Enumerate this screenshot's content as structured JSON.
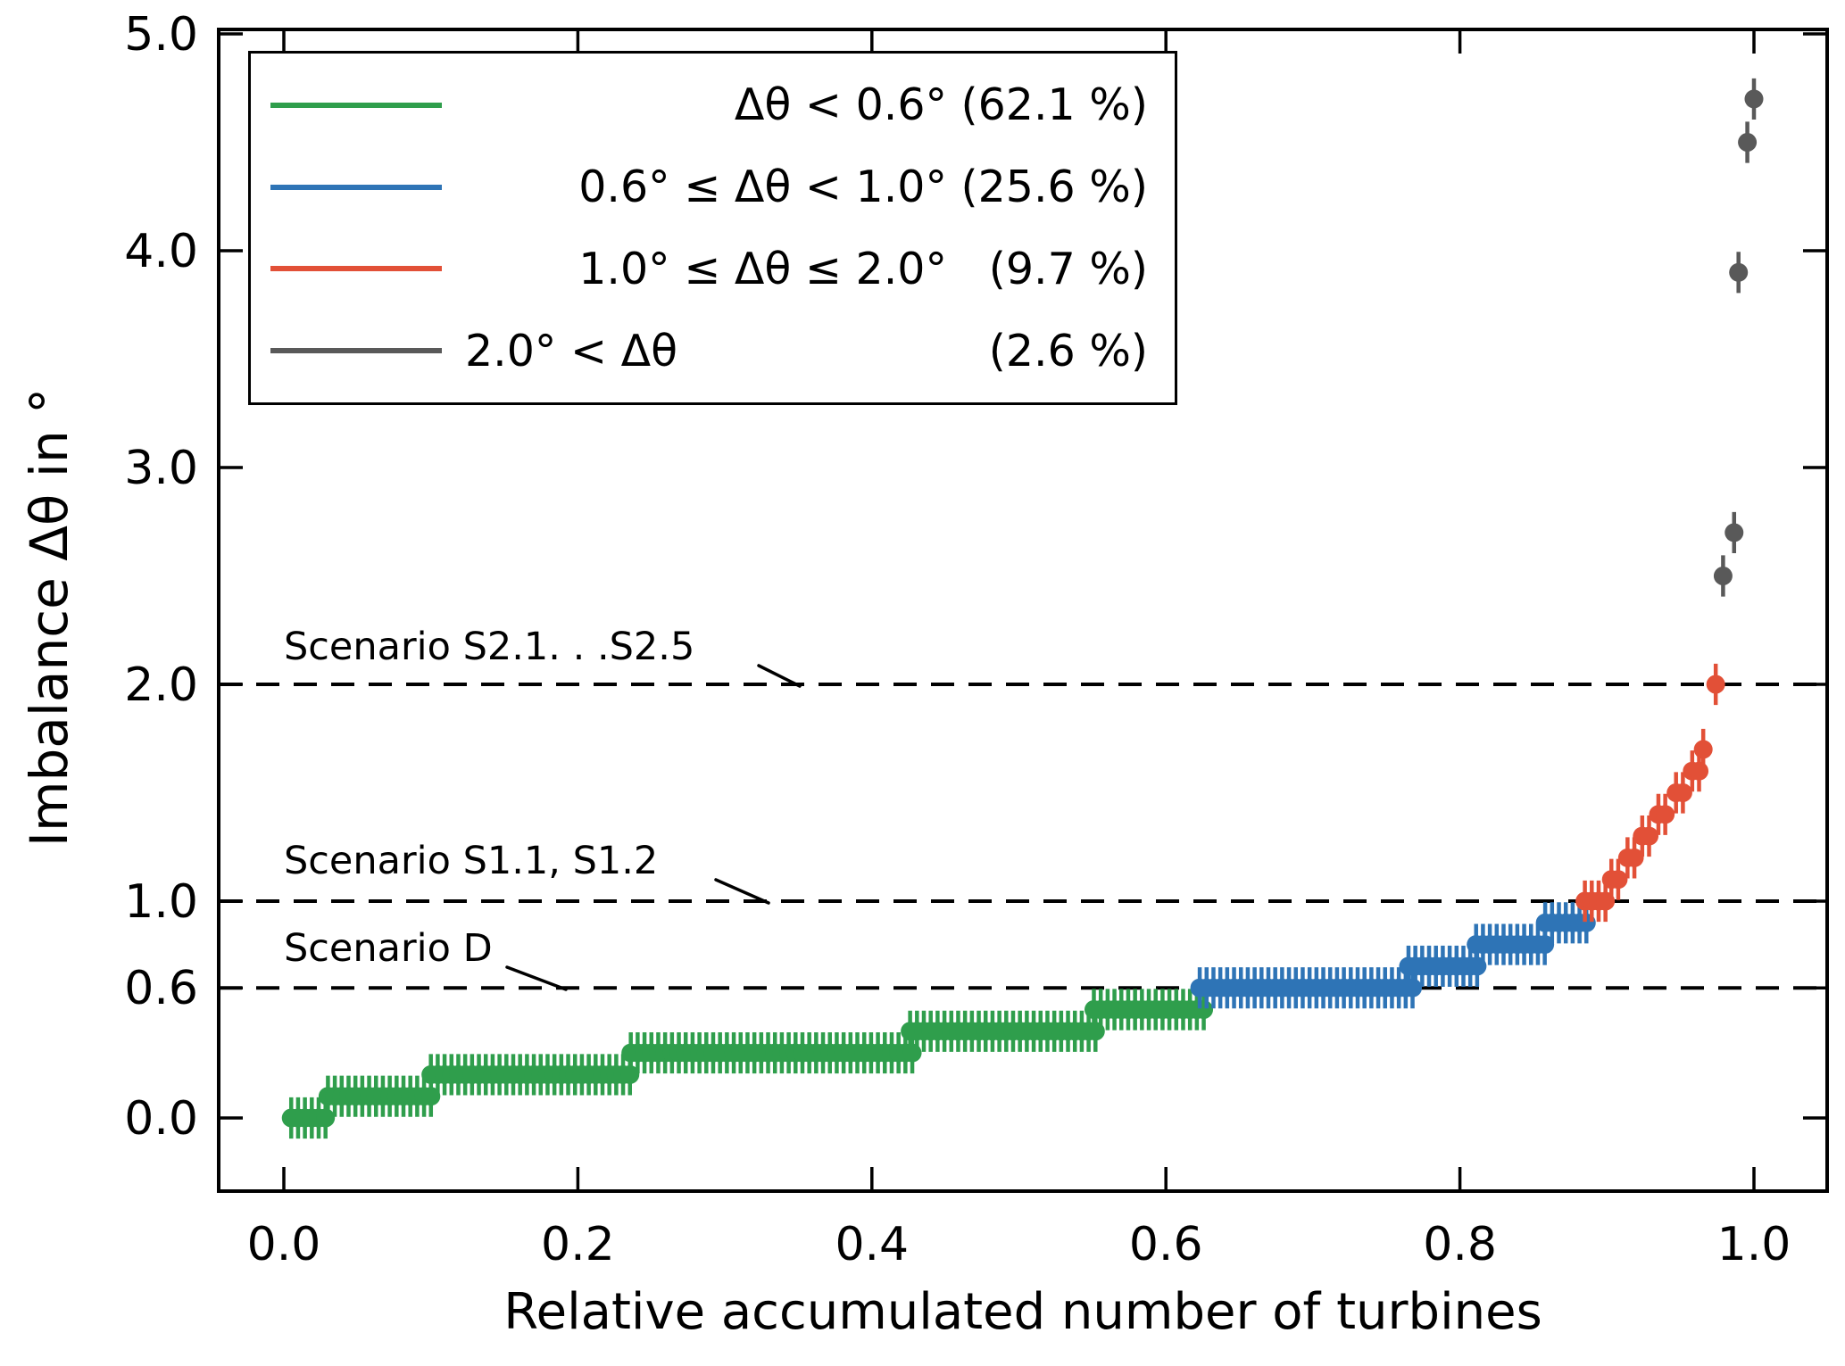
{
  "chart_data": {
    "type": "scatter",
    "title": "",
    "xlabel": "Relative accumulated number of turbines",
    "ylabel": "Imbalance Δθ in °",
    "xlim": [
      -0.044,
      1.05
    ],
    "ylim": [
      -0.34,
      5.02
    ],
    "grid": false,
    "legend_position": "upper left",
    "error_bar_halfheight": 0.095,
    "point_spacing": 0.00467,
    "xticks": [
      {
        "v": 0.0,
        "label": "0.0"
      },
      {
        "v": 0.2,
        "label": "0.2"
      },
      {
        "v": 0.4,
        "label": "0.4"
      },
      {
        "v": 0.6,
        "label": "0.6"
      },
      {
        "v": 0.8,
        "label": "0.8"
      },
      {
        "v": 1.0,
        "label": "1.0"
      }
    ],
    "yticks": [
      {
        "v": 0.0,
        "label": "0.0"
      },
      {
        "v": 0.6,
        "label": "0.6"
      },
      {
        "v": 1.0,
        "label": "1.0"
      },
      {
        "v": 2.0,
        "label": "2.0"
      },
      {
        "v": 3.0,
        "label": "3.0"
      },
      {
        "v": 4.0,
        "label": "4.0"
      },
      {
        "v": 5.0,
        "label": "5.0"
      }
    ],
    "series": [
      {
        "name": "imbalance-below-0.6",
        "color": "#2f9e4c",
        "legend_cond": "Δθ < 0.6°",
        "legend_pct": "(62.1 %)",
        "bands": [
          [
            0.0,
            0.005,
            0.03
          ],
          [
            0.1,
            0.03,
            0.102
          ],
          [
            0.2,
            0.1,
            0.238
          ],
          [
            0.3,
            0.236,
            0.43
          ],
          [
            0.4,
            0.426,
            0.553
          ],
          [
            0.5,
            0.551,
            0.626
          ]
        ]
      },
      {
        "name": "imbalance-0.6-to-1.0",
        "color": "#2e74b6",
        "legend_cond": "0.6° ≤ Δθ < 1.0°",
        "legend_pct": "(25.6 %)",
        "bands": [
          [
            0.6,
            0.623,
            0.769
          ],
          [
            0.7,
            0.765,
            0.814
          ],
          [
            0.8,
            0.811,
            0.861
          ],
          [
            0.9,
            0.858,
            0.888
          ]
        ]
      },
      {
        "name": "imbalance-1.0-to-2.0",
        "color": "#e25037",
        "legend_cond": "1.0° ≤ Δθ ≤ 2.0°",
        "legend_pct": "(9.7 %)",
        "bands": [
          [
            1.0,
            0.885,
            0.9
          ],
          [
            1.1,
            0.903,
            0.911
          ],
          [
            1.2,
            0.914,
            0.921
          ],
          [
            1.3,
            0.924,
            0.932
          ],
          [
            1.4,
            0.935,
            0.944
          ],
          [
            1.5,
            0.947,
            0.956
          ],
          [
            1.6,
            0.958,
            0.963
          ],
          [
            1.7,
            0.9655,
            0.968
          ],
          [
            2.0,
            0.974,
            0.974
          ]
        ]
      },
      {
        "name": "imbalance-above-2.0",
        "color": "#595959",
        "legend_cond": "2.0° < Δθ",
        "legend_pct": "(2.6 %)",
        "points": [
          [
            0.979,
            2.5
          ],
          [
            0.9865,
            2.7
          ],
          [
            0.9895,
            3.9
          ],
          [
            0.9955,
            4.5
          ],
          [
            1.0,
            4.7
          ]
        ]
      }
    ],
    "hlines": [
      {
        "y": 2.0,
        "label": "Scenario S2.1. . .S2.5"
      },
      {
        "y": 1.0,
        "label": "Scenario S1.1, S1.2"
      },
      {
        "y": 0.6,
        "label": "Scenario D"
      }
    ]
  }
}
